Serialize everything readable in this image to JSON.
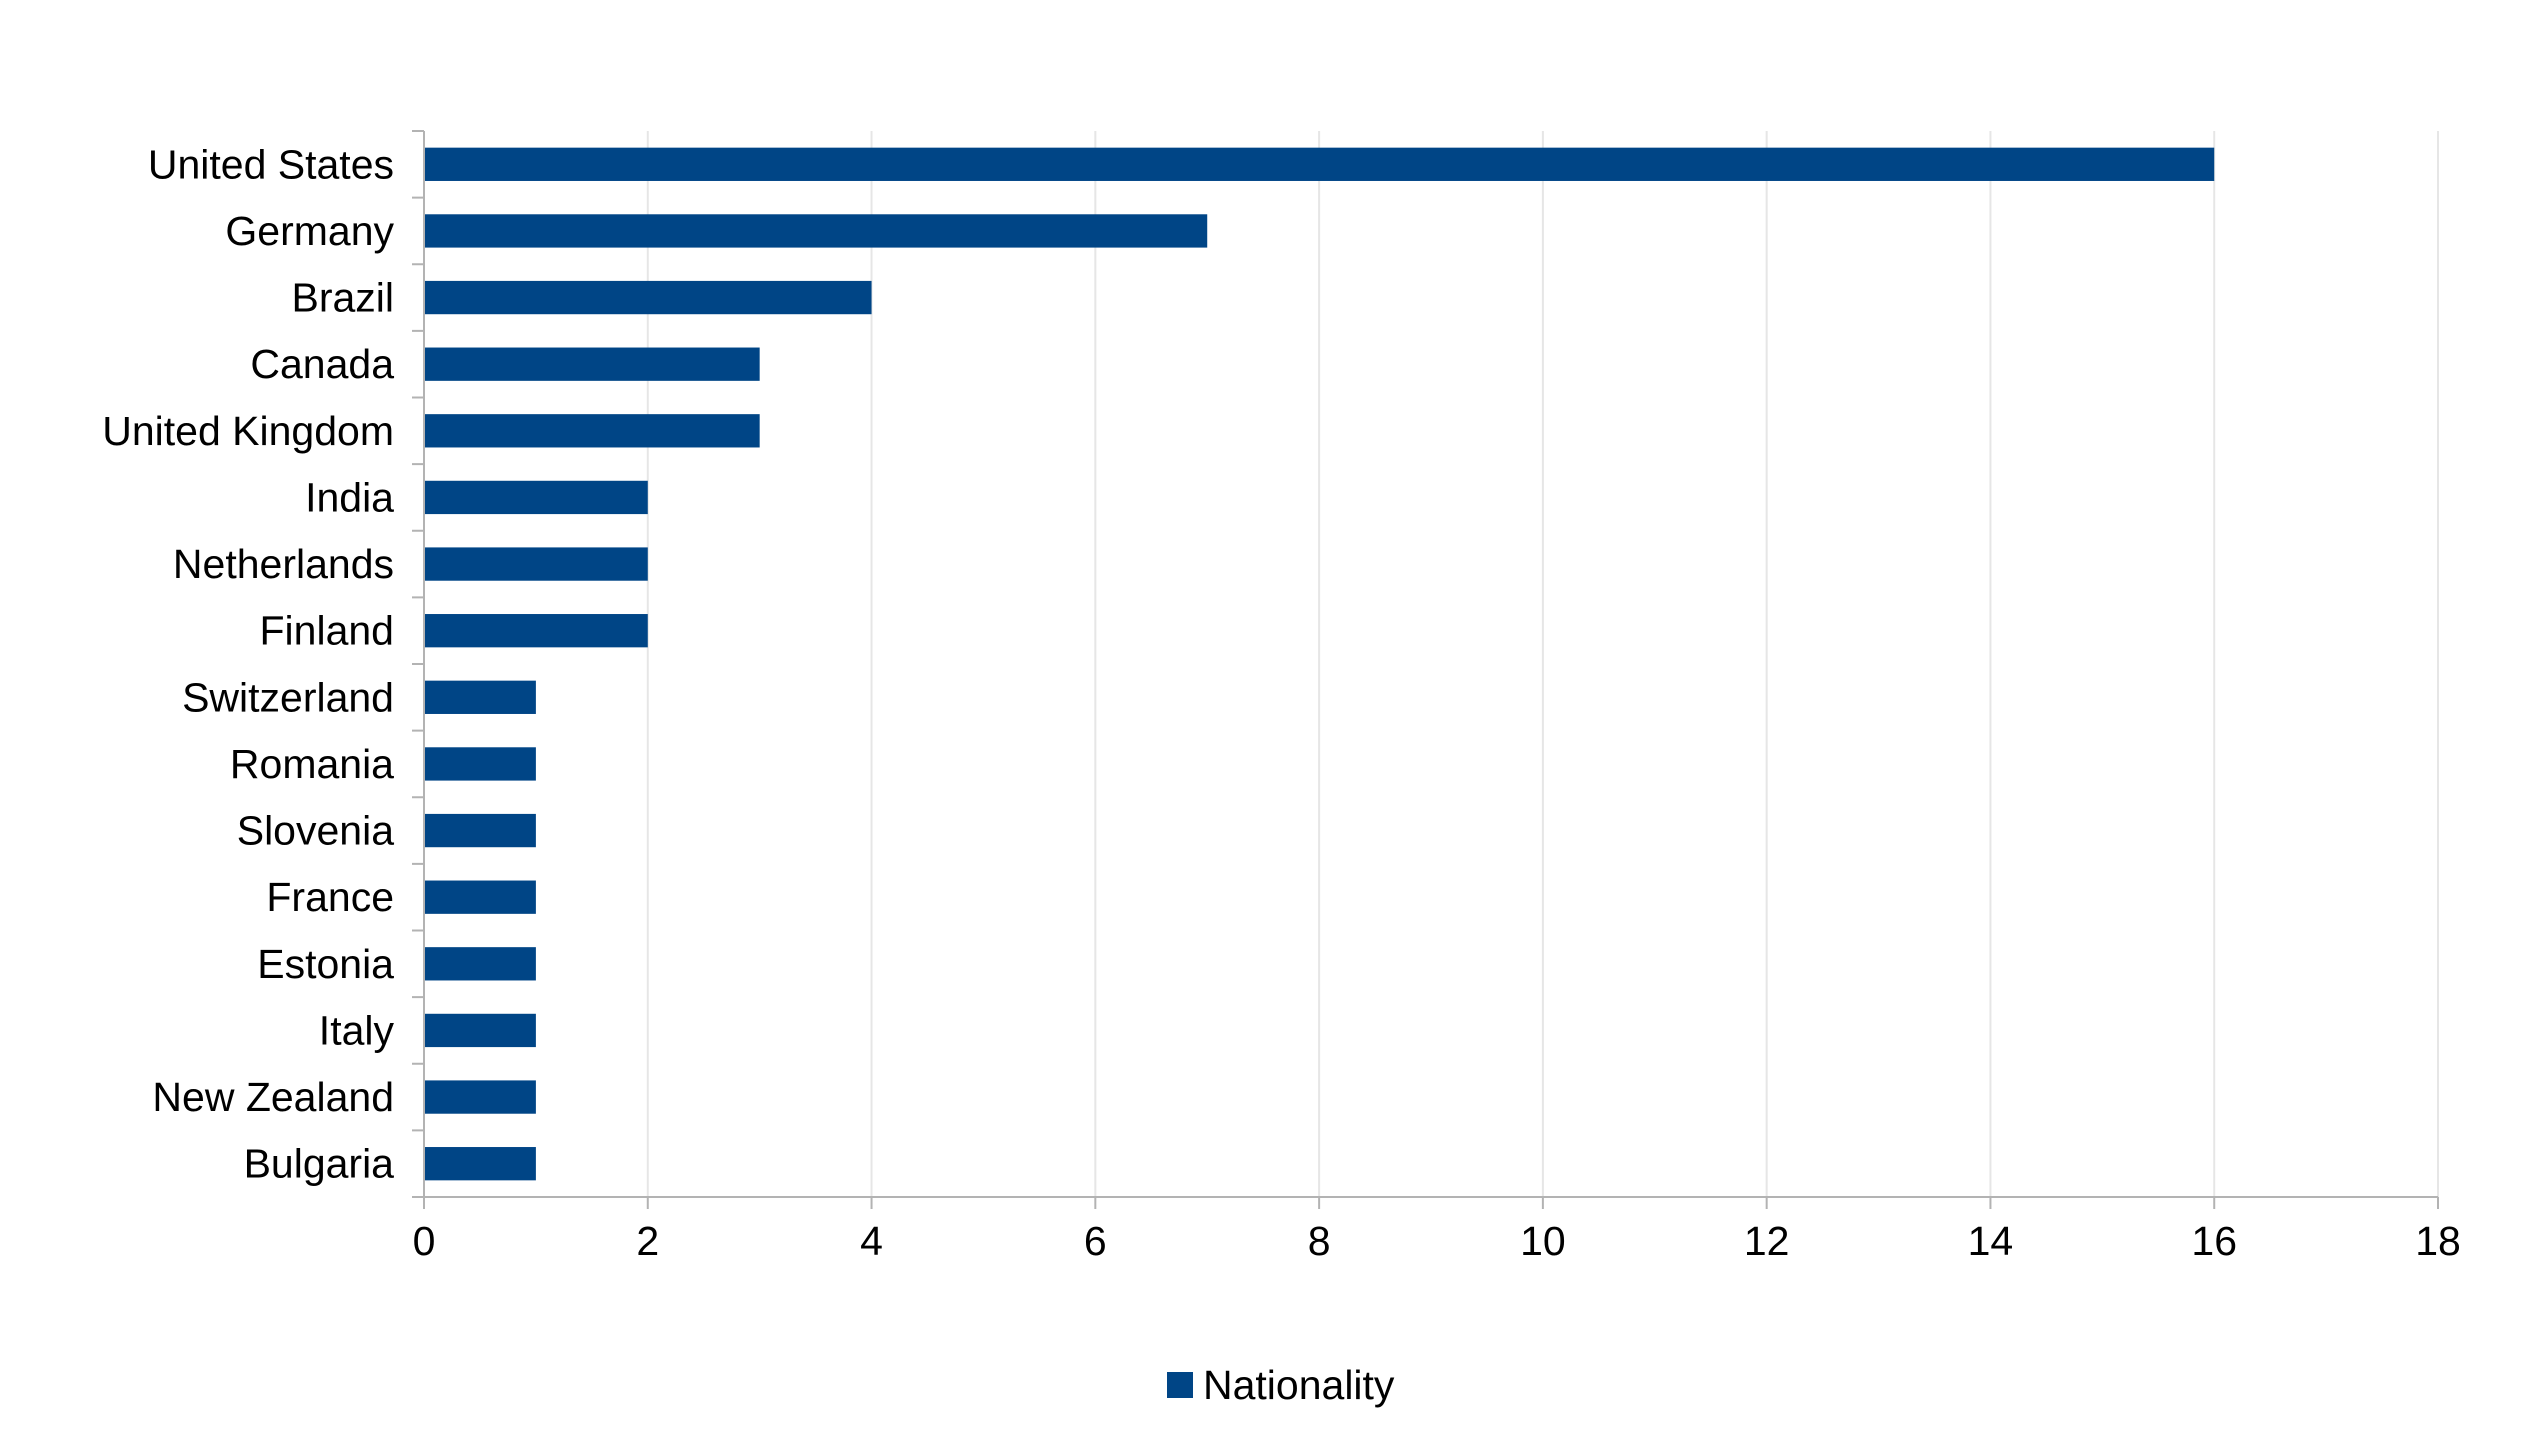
{
  "chart_data": {
    "type": "bar",
    "orientation": "horizontal",
    "categories": [
      "United States",
      "Germany",
      "Brazil",
      "Canada",
      "United Kingdom",
      "India",
      "Netherlands",
      "Finland",
      "Switzerland",
      "Romania",
      "Slovenia",
      "France",
      "Estonia",
      "Italy",
      "New Zealand",
      "Bulgaria"
    ],
    "series": [
      {
        "name": "Nationality",
        "color": "#004586",
        "values": [
          16,
          7,
          4,
          3,
          3,
          2,
          2,
          2,
          1,
          1,
          1,
          1,
          1,
          1,
          1,
          1
        ]
      }
    ],
    "xlim": [
      0,
      18
    ],
    "xticks": [
      0,
      2,
      4,
      6,
      8,
      10,
      12,
      14,
      16,
      18
    ],
    "grid": true,
    "legend_position": "bottom"
  }
}
